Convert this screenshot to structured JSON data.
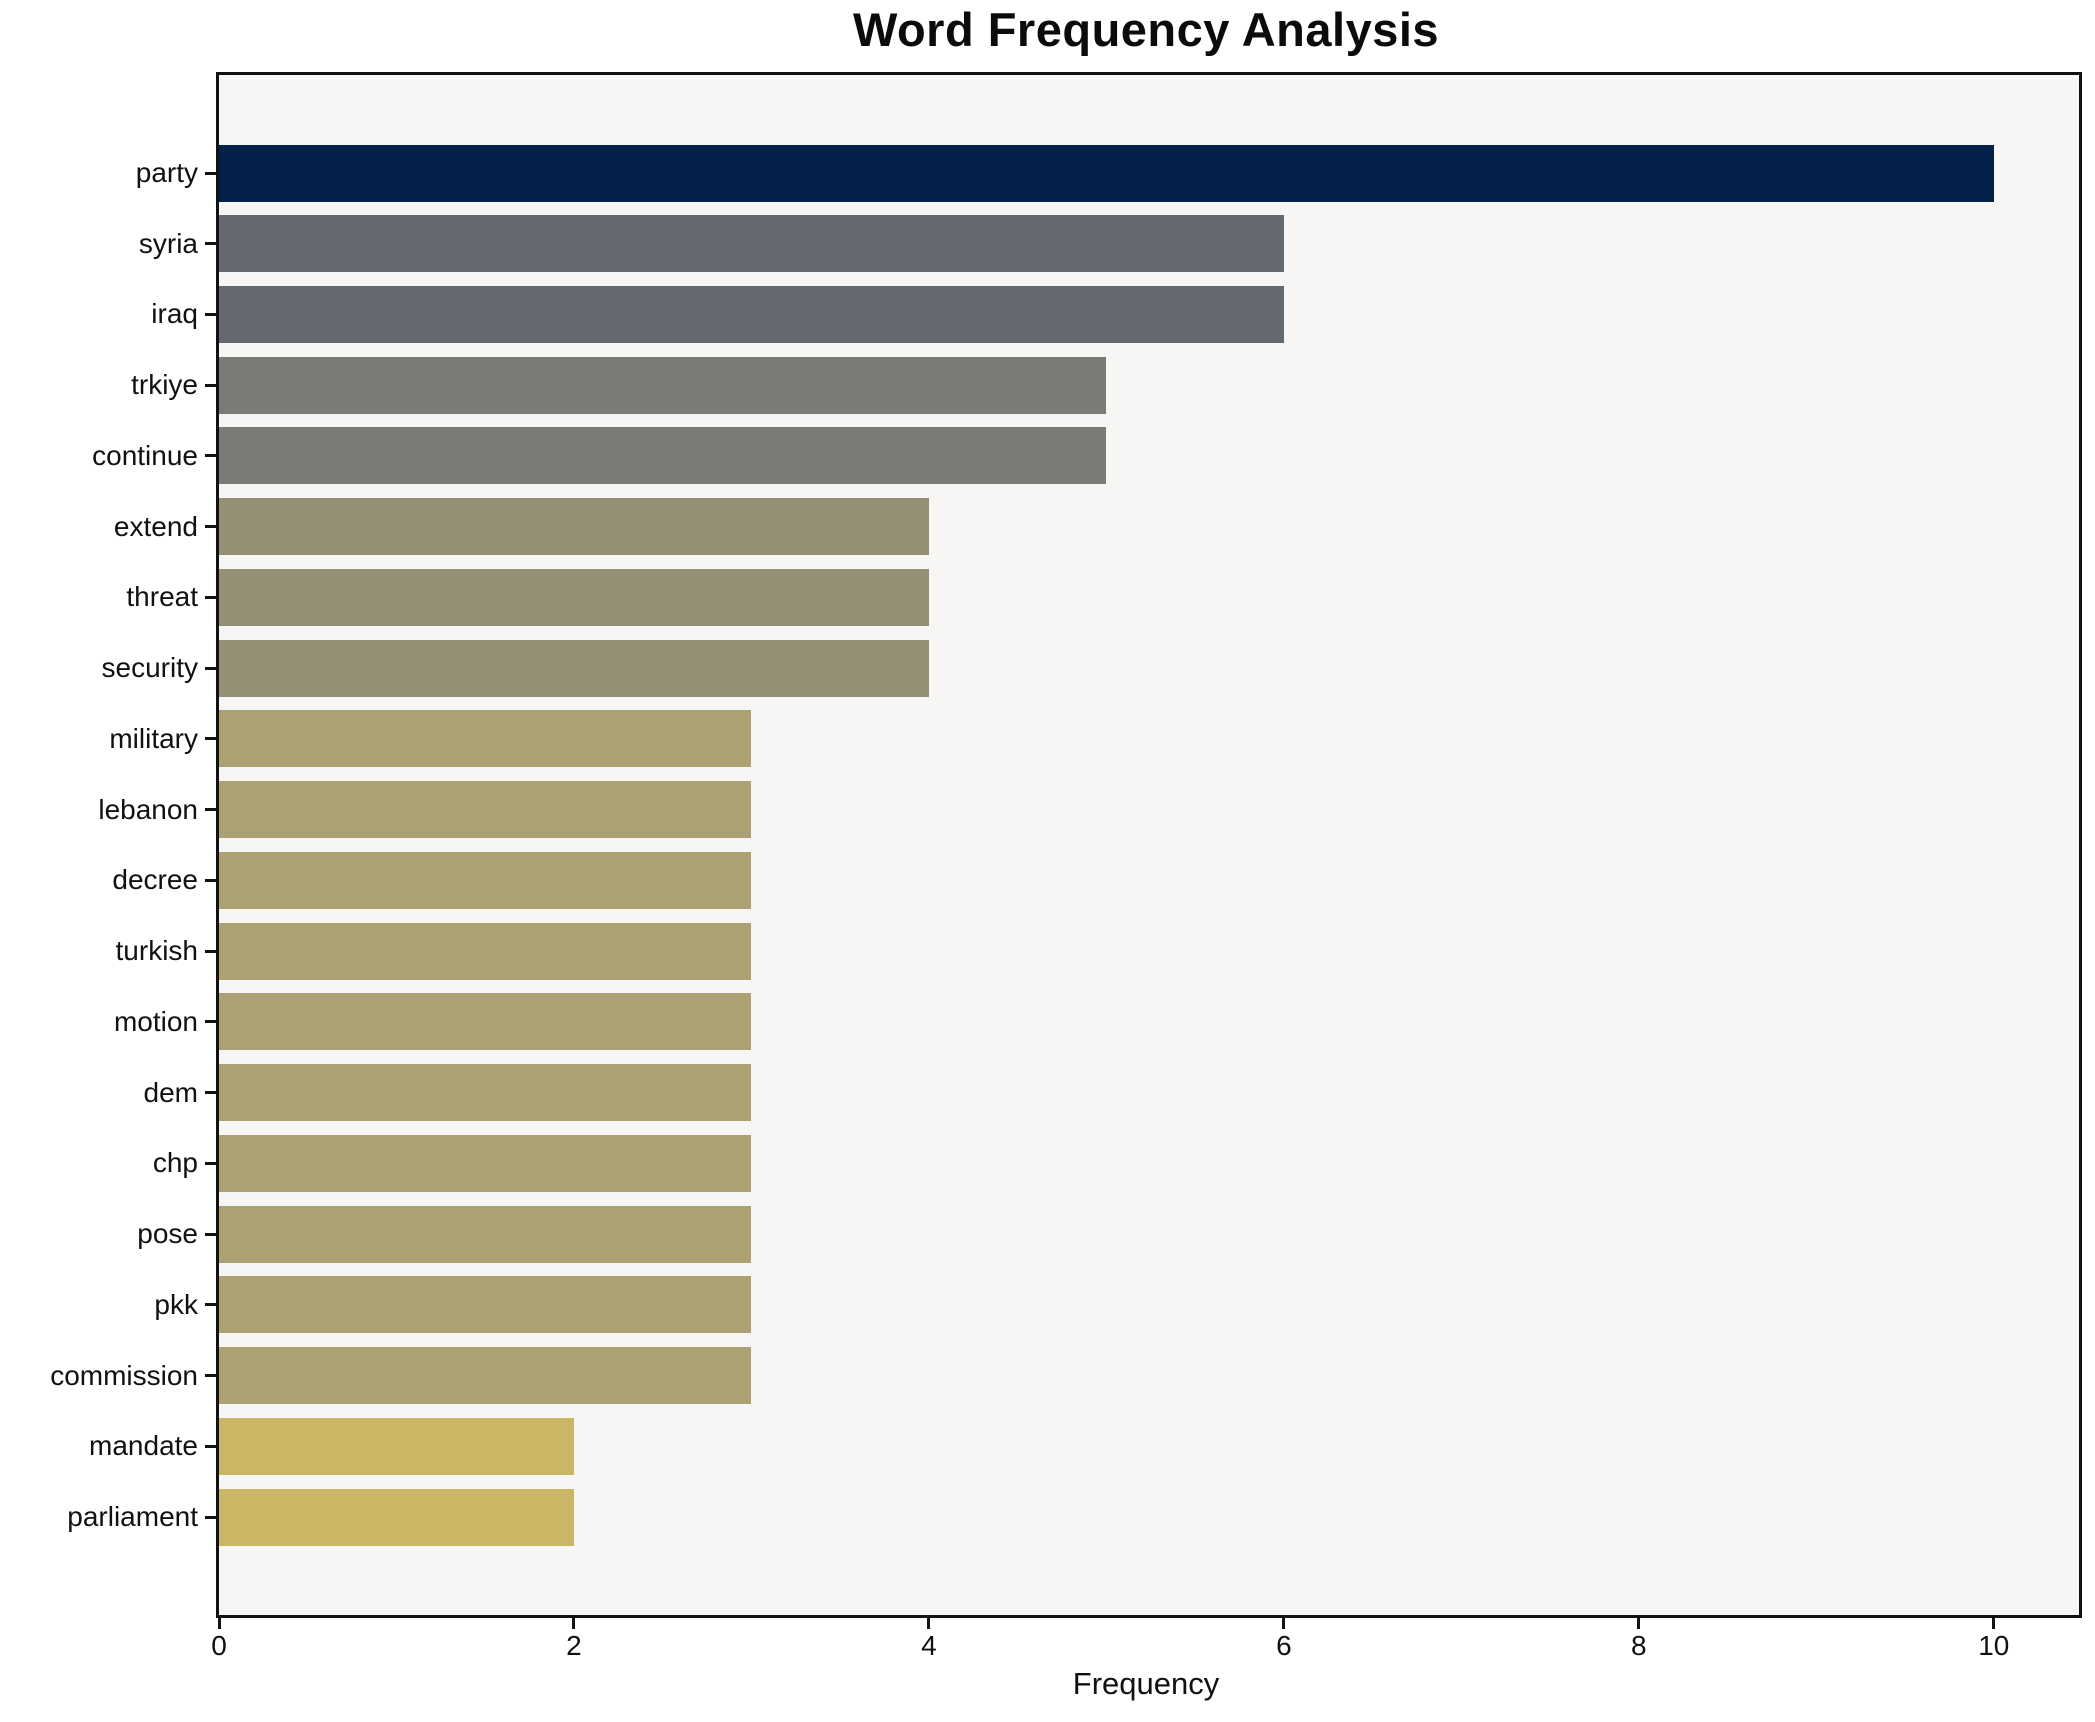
{
  "chart_data": {
    "type": "bar",
    "orientation": "horizontal",
    "title": "Word Frequency Analysis",
    "xlabel": "Frequency",
    "ylabel": "",
    "xlim": [
      0,
      10.48
    ],
    "xtick_values": [
      0,
      2,
      4,
      6,
      8,
      10
    ],
    "xtick_labels": [
      "0",
      "2",
      "4",
      "6",
      "8",
      "10"
    ],
    "grid": false,
    "legend": null,
    "plot_bg_color": "#f7f6f5",
    "spine_color": "#121212",
    "categories": [
      "party",
      "syria",
      "iraq",
      "trkiye",
      "continue",
      "extend",
      "threat",
      "security",
      "military",
      "lebanon",
      "decree",
      "turkish",
      "motion",
      "dem",
      "chp",
      "pose",
      "pkk",
      "commission",
      "mandate",
      "parliament"
    ],
    "values": [
      10,
      6,
      6,
      5,
      5,
      4,
      4,
      4,
      3,
      3,
      3,
      3,
      3,
      3,
      3,
      3,
      3,
      3,
      2,
      2
    ],
    "bar_colors": [
      "#032149",
      "#64686f",
      "#64686f",
      "#7b7a76",
      "#7b7a76",
      "#949076",
      "#949076",
      "#949076",
      "#aba172",
      "#aba172",
      "#aba172",
      "#aba172",
      "#aba172",
      "#aba172",
      "#aba172",
      "#aba172",
      "#aba172",
      "#aba172",
      "#c9b766",
      "#c9b766"
    ]
  }
}
